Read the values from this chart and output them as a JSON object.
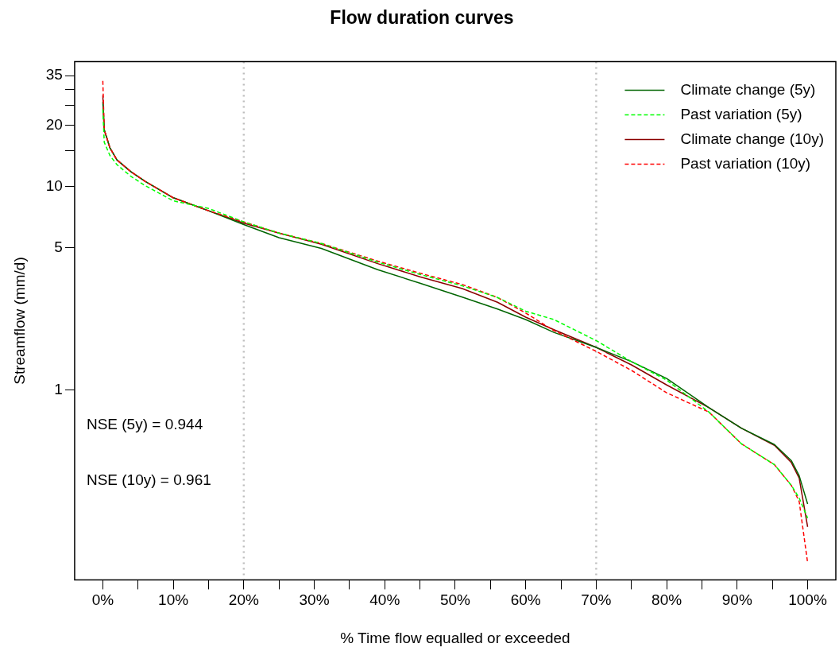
{
  "chart_data": {
    "type": "line",
    "title": "Flow duration curves",
    "xlabel": "% Time flow equalled or exceeded",
    "ylabel": "Streamflow (mm/d)",
    "x": [
      0,
      0.2,
      1,
      2,
      4,
      6,
      10,
      15,
      20,
      25,
      31,
      39,
      45,
      51,
      56,
      60,
      64,
      70,
      75,
      80,
      86,
      90.6,
      95.3,
      97.7,
      98.8,
      100
    ],
    "series": [
      {
        "name": "Climate change (5y)",
        "color": "#006400",
        "line_style": "solid",
        "values": [
          26,
          19,
          15.5,
          13.5,
          11.8,
          10.6,
          8.8,
          7.6,
          6.5,
          5.6,
          4.96,
          3.9,
          3.35,
          2.86,
          2.5,
          2.22,
          1.92,
          1.62,
          1.38,
          1.14,
          0.82,
          0.65,
          0.54,
          0.45,
          0.38,
          0.276
        ]
      },
      {
        "name": "Past variation (5y)",
        "color": "#00ff00",
        "line_style": "dashed",
        "values": [
          24,
          16.5,
          14.2,
          12.8,
          11.2,
          10.1,
          8.5,
          7.8,
          6.7,
          5.9,
          5.25,
          4.25,
          3.7,
          3.25,
          2.85,
          2.44,
          2.22,
          1.75,
          1.38,
          1.12,
          0.78,
          0.545,
          0.43,
          0.34,
          0.295,
          0.235
        ]
      },
      {
        "name": "Climate change (10y)",
        "color": "#8b0000",
        "line_style": "solid",
        "values": [
          28,
          19,
          15.5,
          13.5,
          11.8,
          10.6,
          8.8,
          7.6,
          6.6,
          5.9,
          5.2,
          4.18,
          3.6,
          3.15,
          2.7,
          2.28,
          1.98,
          1.62,
          1.33,
          1.06,
          0.82,
          0.65,
          0.535,
          0.44,
          0.37,
          0.213
        ]
      },
      {
        "name": "Past variation (10y)",
        "color": "#ff0000",
        "line_style": "dashed",
        "values": [
          33,
          19,
          15.5,
          13.5,
          11.8,
          10.6,
          8.8,
          7.6,
          6.7,
          5.9,
          5.25,
          4.3,
          3.75,
          3.3,
          2.85,
          2.39,
          1.96,
          1.55,
          1.25,
          0.97,
          0.78,
          0.545,
          0.43,
          0.34,
          0.284,
          0.142
        ]
      }
    ],
    "log": "y",
    "xlim": [
      -4,
      104
    ],
    "ylim": [
      0.117,
      41
    ],
    "xticks": [
      {
        "value": 0,
        "label": "0%"
      },
      {
        "value": 5,
        "label": null
      },
      {
        "value": 10,
        "label": "10%"
      },
      {
        "value": 15,
        "label": null
      },
      {
        "value": 20,
        "label": "20%"
      },
      {
        "value": 25,
        "label": null
      },
      {
        "value": 30,
        "label": "30%"
      },
      {
        "value": 35,
        "label": null
      },
      {
        "value": 40,
        "label": "40%"
      },
      {
        "value": 45,
        "label": null
      },
      {
        "value": 50,
        "label": "50%"
      },
      {
        "value": 55,
        "label": null
      },
      {
        "value": 60,
        "label": "60%"
      },
      {
        "value": 65,
        "label": null
      },
      {
        "value": 70,
        "label": "70%"
      },
      {
        "value": 75,
        "label": null
      },
      {
        "value": 80,
        "label": "80%"
      },
      {
        "value": 85,
        "label": null
      },
      {
        "value": 90,
        "label": "90%"
      },
      {
        "value": 95,
        "label": null
      },
      {
        "value": 100,
        "label": "100%"
      }
    ],
    "yticks": [
      1,
      5,
      10,
      {
        "value": 15,
        "label": null
      },
      20,
      {
        "value": 25,
        "label": null
      },
      {
        "value": 30,
        "label": null
      },
      35
    ],
    "ref_lines": [
      {
        "axis": "x",
        "value": 20,
        "color": "#bebebe",
        "line_style": "dotted"
      },
      {
        "axis": "x",
        "value": 70,
        "color": "#bebebe",
        "line_style": "dotted"
      }
    ],
    "annotations": [
      "NSE (5y) = 0.944",
      "NSE (10y) = 0.961"
    ],
    "grid": false,
    "legend": "top right",
    "marker": "none"
  }
}
